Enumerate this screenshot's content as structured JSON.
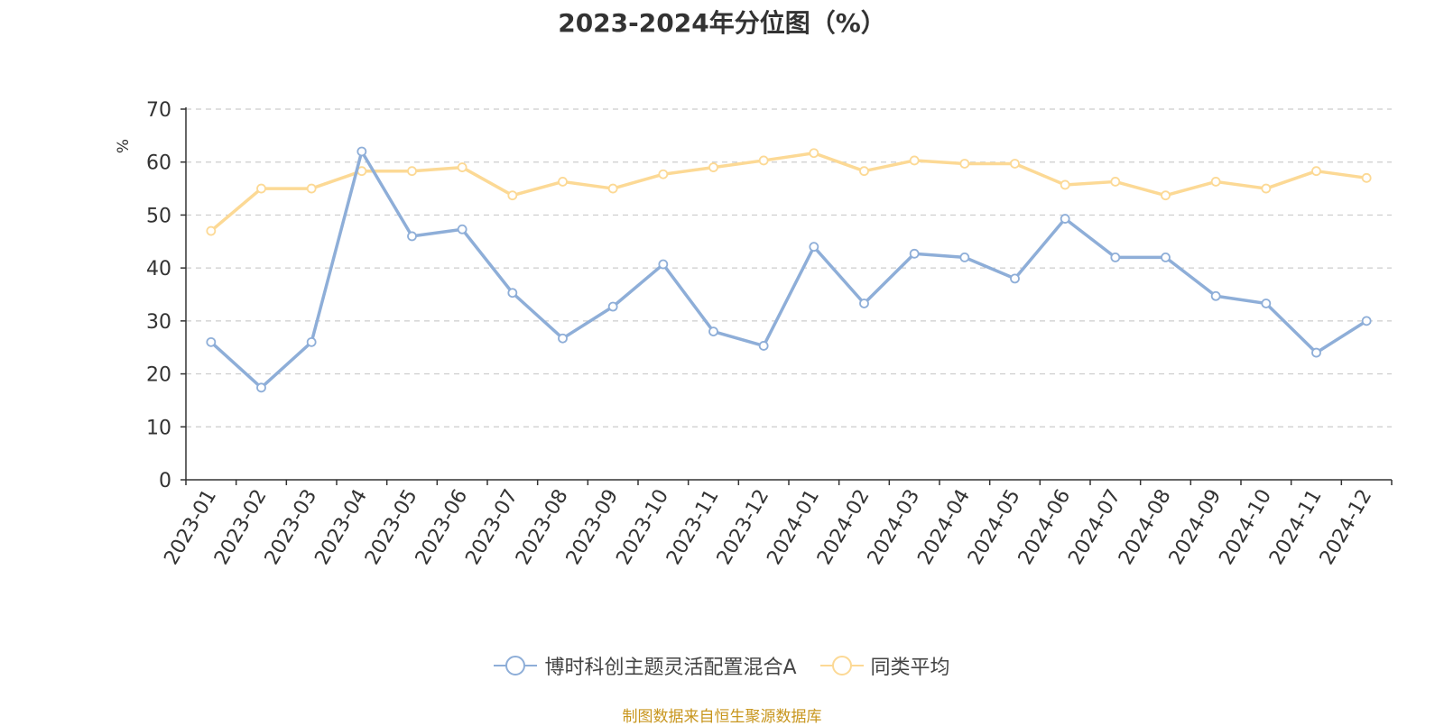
{
  "colors": {
    "series1": "#8eaed8",
    "series2": "#fcd995",
    "axis": "#333333",
    "grid": "#cccccc",
    "unit": "#e62e2e",
    "source": "#c8961e"
  },
  "chart_data": {
    "type": "line",
    "title": "2023-2024年分位图（%）",
    "ylabel": "%",
    "xlabel": "",
    "ylim": [
      0,
      70
    ],
    "yticks": [
      0,
      10,
      20,
      30,
      40,
      50,
      60,
      70
    ],
    "grid": true,
    "legend_position": "bottom",
    "categories": [
      "2023-01",
      "2023-02",
      "2023-03",
      "2023-04",
      "2023-05",
      "2023-06",
      "2023-07",
      "2023-08",
      "2023-09",
      "2023-10",
      "2023-11",
      "2023-12",
      "2024-01",
      "2024-02",
      "2024-03",
      "2024-04",
      "2024-05",
      "2024-06",
      "2024-07",
      "2024-08",
      "2024-09",
      "2024-10",
      "2024-11",
      "2024-12"
    ],
    "series": [
      {
        "name": "博时科创主题灵活配置混合A",
        "values": [
          26.0,
          17.4,
          26.0,
          62.0,
          46.0,
          47.3,
          35.3,
          26.7,
          32.7,
          40.7,
          28.0,
          25.3,
          44.0,
          33.3,
          42.7,
          42.0,
          38.0,
          49.3,
          42.0,
          42.0,
          34.7,
          33.3,
          24.0,
          30.0
        ]
      },
      {
        "name": "同类平均",
        "values": [
          47.0,
          55.0,
          55.0,
          58.3,
          58.3,
          59.0,
          53.7,
          56.3,
          55.0,
          57.7,
          59.0,
          60.3,
          61.7,
          58.3,
          60.3,
          59.7,
          59.7,
          55.7,
          56.3,
          53.7,
          56.3,
          55.0,
          58.3,
          57.0
        ]
      }
    ]
  },
  "source_text": "制图数据来自恒生聚源数据库"
}
